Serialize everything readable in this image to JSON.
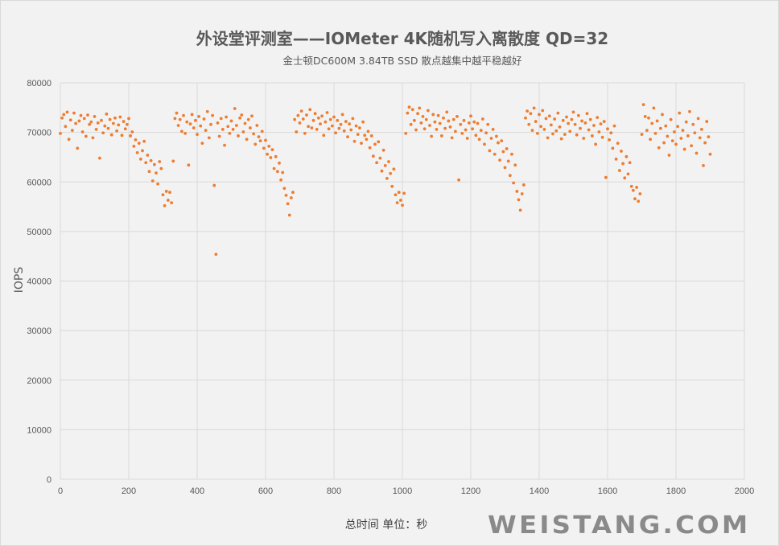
{
  "chart_data": {
    "type": "scatter",
    "title": "外设堂评测室——IOMeter  4K随机写入离散度 QD=32",
    "subtitle": "金士顿DC600M  3.84TB  SSD 散点越集中越平稳越好",
    "xlabel": "总时间 单位：秒",
    "ylabel": "IOPS",
    "xlim": [
      0,
      2000
    ],
    "ylim": [
      0,
      80000
    ],
    "x_ticks": [
      "0",
      "200",
      "400",
      "600",
      "800",
      "1000",
      "1200",
      "1400",
      "1600",
      "1800",
      "2000"
    ],
    "y_ticks": [
      "0",
      "10000",
      "20000",
      "30000",
      "40000",
      "50000",
      "60000",
      "70000",
      "80000"
    ],
    "grid": true,
    "legend": "none",
    "marker_color": "#ed7d31",
    "x_start": 0,
    "x_step": 5,
    "y": [
      69800,
      72900,
      73600,
      71200,
      74100,
      68600,
      72500,
      70400,
      73900,
      71800,
      66800,
      72300,
      73400,
      70100,
      72800,
      69200,
      73500,
      71600,
      72100,
      68900,
      73200,
      70600,
      71900,
      64800,
      72400,
      69900,
      71300,
      73700,
      70800,
      72600,
      69500,
      71800,
      72900,
      70300,
      71500,
      73100,
      69400,
      72200,
      70700,
      71600,
      72800,
      69300,
      70100,
      67200,
      68500,
      65900,
      67800,
      64600,
      66300,
      68200,
      63900,
      65400,
      62100,
      64300,
      60200,
      63500,
      61800,
      59600,
      64100,
      62700,
      57400,
      55200,
      58100,
      56300,
      57900,
      55800,
      64200,
      72800,
      73900,
      71400,
      72600,
      70200,
      73400,
      69800,
      72100,
      63400,
      71700,
      73600,
      70900,
      72400,
      69600,
      73200,
      71300,
      67800,
      72700,
      70400,
      74200,
      68900,
      71600,
      73400,
      59300,
      45400,
      71900,
      69200,
      72800,
      70600,
      67400,
      73100,
      71200,
      69800,
      72300,
      70600,
      74800,
      71400,
      69300,
      72900,
      73500,
      70100,
      71800,
      68600,
      72600,
      70900,
      73300,
      69700,
      67600,
      71400,
      69100,
      68300,
      70200,
      66800,
      68400,
      65600,
      67200,
      64900,
      66500,
      62700,
      65100,
      62100,
      63800,
      60400,
      61900,
      58700,
      57300,
      55600,
      53300,
      56800,
      57900,
      72600,
      70100,
      73400,
      71900,
      74300,
      72700,
      69800,
      73500,
      71200,
      74600,
      70900,
      72400,
      73800,
      70600,
      72900,
      71700,
      73300,
      69400,
      72100,
      74000,
      70700,
      72600,
      71300,
      73100,
      69900,
      72400,
      70800,
      71600,
      73600,
      70300,
      72200,
      69100,
      71700,
      70500,
      72800,
      68200,
      71300,
      69600,
      70900,
      67800,
      72100,
      69400,
      68600,
      70200,
      66900,
      69300,
      65200,
      67600,
      63900,
      68100,
      64800,
      62200,
      66400,
      63300,
      60700,
      64100,
      61700,
      59100,
      62600,
      57400,
      55800,
      57900,
      56300,
      55300,
      57700,
      69800,
      73900,
      75100,
      71600,
      74600,
      72400,
      70500,
      73800,
      74900,
      71900,
      73200,
      70700,
      72600,
      74400,
      71400,
      69200,
      73600,
      72100,
      70600,
      73400,
      71800,
      69300,
      72900,
      70800,
      74100,
      72300,
      71100,
      68900,
      72600,
      70200,
      73200,
      60400,
      71600,
      69800,
      72400,
      70500,
      68800,
      71900,
      73300,
      70700,
      72100,
      69400,
      71800,
      68600,
      70400,
      72700,
      67600,
      69900,
      71600,
      66300,
      68800,
      70600,
      65600,
      69200,
      67900,
      64400,
      68300,
      66100,
      62900,
      66700,
      64200,
      61300,
      65600,
      59800,
      63400,
      58100,
      56400,
      54300,
      57600,
      59400,
      72900,
      74300,
      71600,
      73800,
      70400,
      74900,
      72200,
      69800,
      73600,
      71200,
      74400,
      70600,
      72800,
      68900,
      73300,
      71500,
      69700,
      72700,
      70300,
      73900,
      71100,
      68700,
      72400,
      69600,
      73100,
      71800,
      70200,
      72600,
      74100,
      71600,
      69500,
      73400,
      70800,
      72300,
      68800,
      71900,
      73800,
      70500,
      72600,
      69300,
      71400,
      67600,
      73000,
      70100,
      71700,
      69000,
      72200,
      60900,
      70700,
      68500,
      69900,
      66800,
      71300,
      64600,
      67800,
      62300,
      66200,
      63700,
      60800,
      65100,
      61600,
      63900,
      59100,
      58300,
      56600,
      58900,
      56100,
      57600,
      69600,
      75600,
      73200,
      70400,
      72900,
      68600,
      71800,
      74900,
      69800,
      72300,
      66900,
      70800,
      73600,
      67900,
      71300,
      69200,
      65400,
      72600,
      68300,
      70100,
      67600,
      71200,
      73900,
      68800,
      70400,
      66600,
      72100,
      69300,
      74200,
      67300,
      71600,
      69900,
      65800,
      72800,
      68900,
      70600,
      63300,
      67900,
      72200,
      69100,
      65600
    ]
  },
  "watermark": "WEISTANG.COM"
}
